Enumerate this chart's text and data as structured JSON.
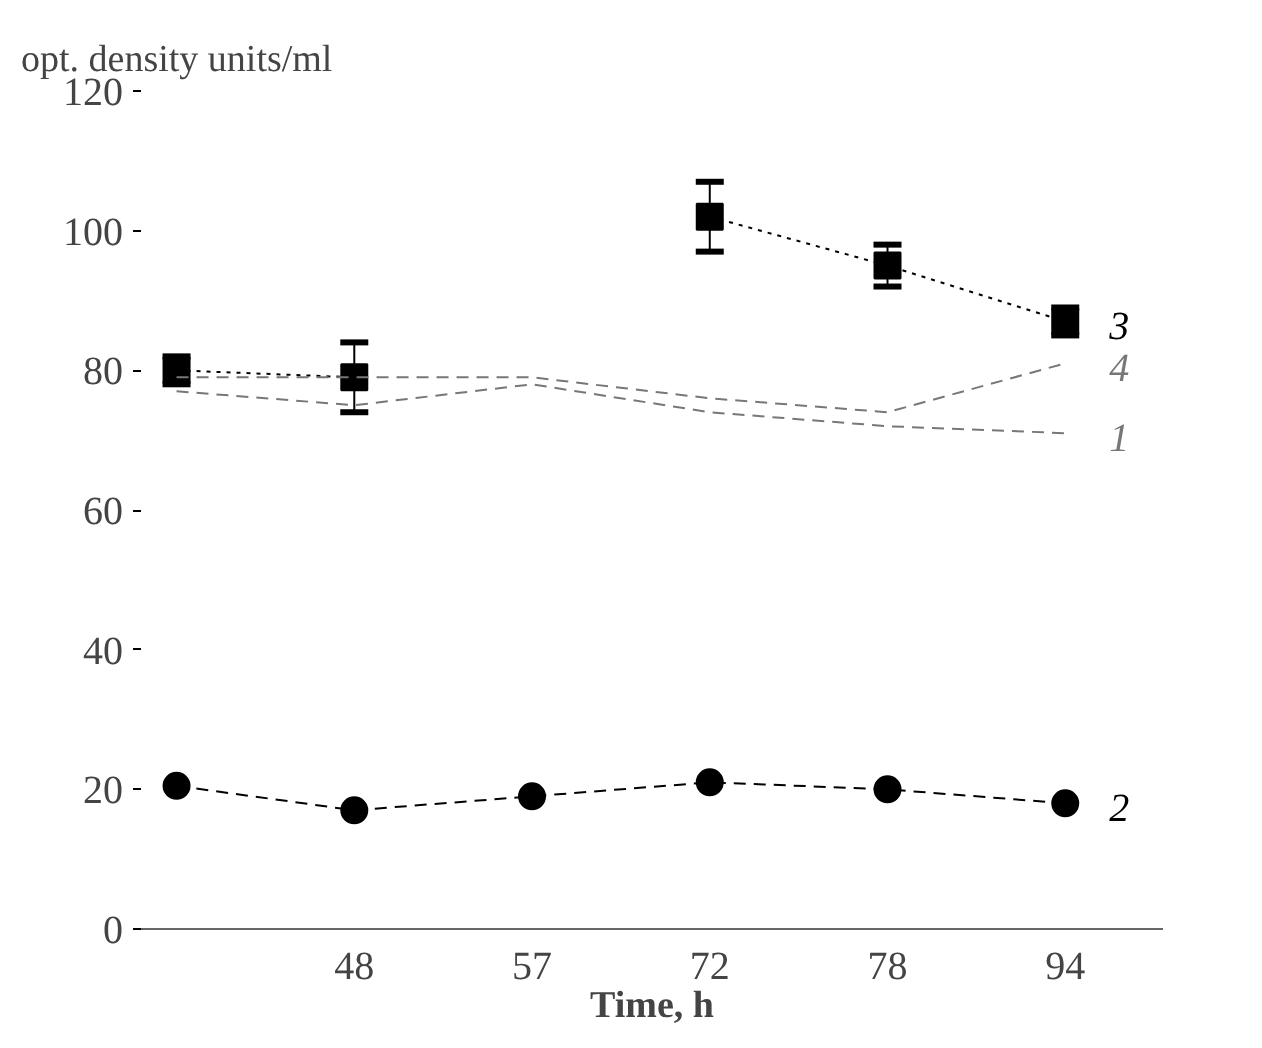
{
  "chart_data": {
    "type": "line",
    "ylabel": "opt. density units/ml",
    "xlabel": "Time, h",
    "categories": [
      null,
      "48",
      "57",
      "72",
      "78",
      "94"
    ],
    "ylim": [
      0,
      120
    ],
    "yticks": [
      0,
      20,
      40,
      60,
      80,
      100,
      120
    ],
    "grid": false,
    "legend": "right",
    "series": [
      {
        "name": "3",
        "color": "#000000",
        "marker": "square",
        "line_style": "dotted",
        "values": [
          80,
          79,
          null,
          102,
          95,
          87
        ],
        "errors": [
          2,
          5,
          null,
          [
            97,
            107
          ],
          [
            92,
            98
          ],
          2
        ]
      },
      {
        "name": "4",
        "color": "#777777",
        "marker": "none",
        "line_style": "dashed",
        "values": [
          79,
          79,
          79,
          76,
          74,
          81
        ]
      },
      {
        "name": "1",
        "color": "#777777",
        "marker": "none",
        "line_style": "dashed",
        "values": [
          77,
          75,
          78,
          74,
          72,
          71
        ]
      },
      {
        "name": "2",
        "color": "#000000",
        "marker": "circle",
        "line_style": "dashed",
        "values": [
          20.5,
          17,
          19,
          21,
          20,
          18
        ]
      }
    ]
  }
}
